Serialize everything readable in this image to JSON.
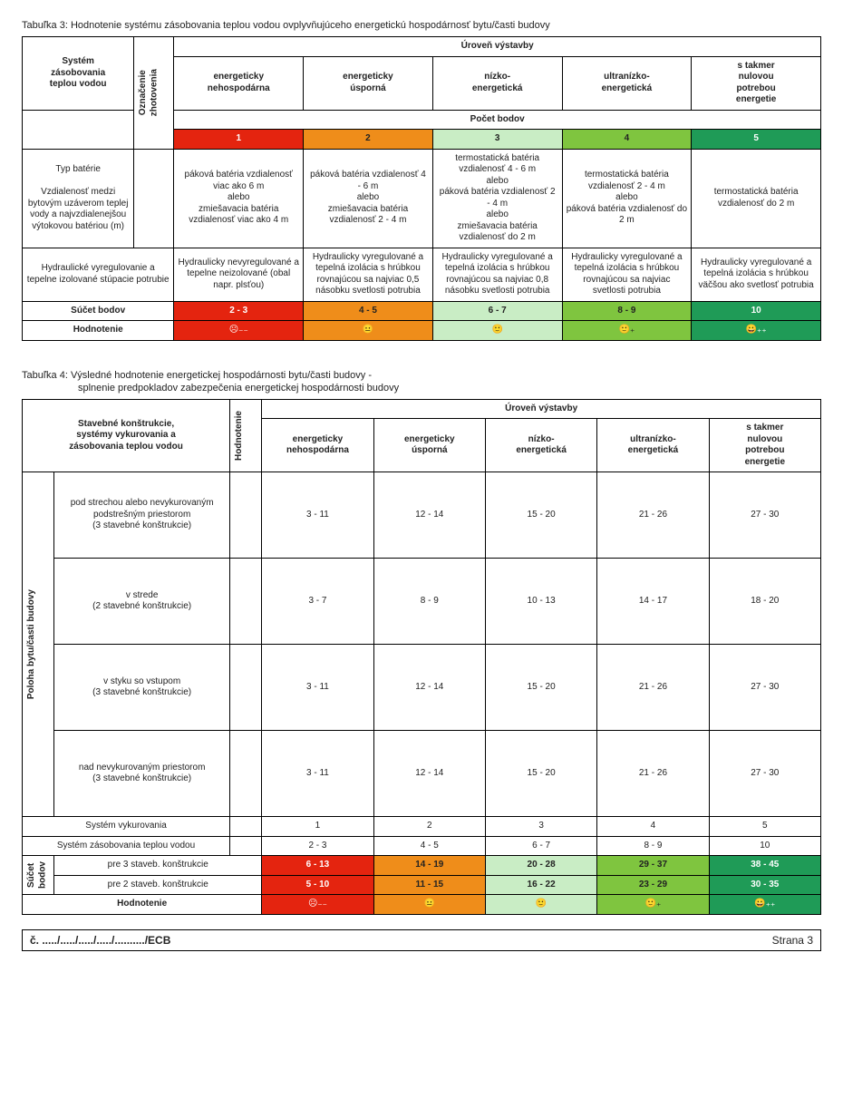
{
  "colors": {
    "c1": "#e4240f",
    "c2": "#ef8d1a",
    "c3": "#c9edc5",
    "c4": "#7fc53f",
    "c5": "#1f9b57",
    "white": "#ffffff",
    "text_on_dark": "#ffffff",
    "text": "#222222"
  },
  "faces": {
    "c1": "☹︎₋₋",
    "c2": "😐",
    "c3": "🙂",
    "c4": "🙂₊",
    "c5": "😀₊₊"
  },
  "table3": {
    "caption": "Tabuľka 3: Hodnotenie systému zásobovania teplou vodou ovplyvňujúceho energetickú hospodárnosť bytu/časti budovy",
    "left_header": "Systém\nzásobovania\nteplou vodou",
    "side_header": "Označenie\nzhotovenia",
    "group_header": "Úroveň výstavby",
    "sub_header": "Počet bodov",
    "levels": [
      "energeticky\nnehospodárna",
      "energeticky\núsporná",
      "nízko-\nenergetická",
      "ultranízko-\nenergetická",
      "s takmer\nnulovou\npotrebou\nenergetie"
    ],
    "numbers": [
      "1",
      "2",
      "3",
      "4",
      "5"
    ],
    "row1_label": "Typ batérie\n\nVzdialenosť medzi bytovým uzáverom teplej vody a najvzdialenejšou výtokovou batériou (m)",
    "row1_cells": [
      "páková batéria vzdialenosť viac ako 6 m\nalebo\nzmiešavacia batéria vzdialenosť viac ako 4 m",
      "páková batéria vzdialenosť 4 - 6 m\nalebo\nzmiešavacia batéria vzdialenosť 2 - 4 m",
      "termostatická batéria vzdialenosť 4 - 6 m\nalebo\npáková batéria vzdialenosť 2 - 4 m\nalebo\nzmiešavacia batéria vzdialenosť do 2 m",
      "termostatická batéria vzdialenosť 2 - 4 m\nalebo\npáková batéria vzdialenosť do 2 m",
      "termostatická batéria vzdialenosť do 2 m"
    ],
    "row2_label": "Hydraulické vyregulovanie a tepelne izolované stúpacie potrubie",
    "row2_cells": [
      "Hydraulicky nevyregulované a tepelne neizolované (obal napr. plsťou)",
      "Hydraulicky vyregulované a tepelná izolácia s hrúbkou rovnajúcou sa najviac 0,5 násobku svetlosti potrubia",
      "Hydraulicky vyregulované a tepelná izolácia s hrúbkou rovnajúcou sa najviac 0,8 násobku svetlosti potrubia",
      "Hydraulicky vyregulované a tepelná izolácia s hrúbkou rovnajúcou sa najviac svetlosti potrubia",
      "Hydraulicky vyregulované a tepelná izolácia s hrúbkou väčšou ako svetlosť potrubia"
    ],
    "sum_label": "Súčet bodov",
    "sum_values": [
      "2 - 3",
      "4 - 5",
      "6 - 7",
      "8 - 9",
      "10"
    ],
    "rating_label": "Hodnotenie"
  },
  "table4": {
    "caption1": "Tabuľka 4: Výsledné hodnotenie energetickej hospodárnosti bytu/časti budovy -",
    "caption2": "splnenie predpokladov zabezpečenia energetickej hospodárnosti budovy",
    "left_header": "Stavebné konštrukcie,\nsystémy vykurovania a\nzásobovania teplou vodou",
    "side_header": "Hodnotenie",
    "group_header": "Úroveň výstavby",
    "levels": [
      "energeticky\nnehospodárna",
      "energeticky\núsporná",
      "nízko-\nenergetická",
      "ultranízko-\nenergetická",
      "s takmer\nnulovou\npotrebou\nenergetie"
    ],
    "poloha_label": "Poloha bytu/časti budovy",
    "rows": [
      {
        "label": "pod strechou alebo nevykurovaným podstrešným priestorom\n(3 stavebné konštrukcie)",
        "v": [
          "3 - 11",
          "12 - 14",
          "15 - 20",
          "21 - 26",
          "27 - 30"
        ]
      },
      {
        "label": "v strede\n(2 stavebné konštrukcie)",
        "v": [
          "3 - 7",
          "8 - 9",
          "10 - 13",
          "14 - 17",
          "18 - 20"
        ]
      },
      {
        "label": "v styku so vstupom\n(3 stavebné konštrukcie)",
        "v": [
          "3 - 11",
          "12 - 14",
          "15 - 20",
          "21 - 26",
          "27 - 30"
        ]
      },
      {
        "label": "nad nevykurovaným priestorom\n(3 stavebné konštrukcie)",
        "v": [
          "3 - 11",
          "12 - 14",
          "15 - 20",
          "21 - 26",
          "27 - 30"
        ]
      }
    ],
    "row_heat": {
      "label": "Systém vykurovania",
      "v": [
        "1",
        "2",
        "3",
        "4",
        "5"
      ]
    },
    "row_water": {
      "label": "Systém zásobovania teplou vodou",
      "v": [
        "2 - 3",
        "4 - 5",
        "6 - 7",
        "8 - 9",
        "10"
      ]
    },
    "sum_side": "Súčet\nbodov",
    "sum_rows": [
      {
        "label": "pre 3 staveb. konštrukcie",
        "v": [
          "6 - 13",
          "14 - 19",
          "20 - 28",
          "29 - 37",
          "38 - 45"
        ]
      },
      {
        "label": "pre 2 staveb. konštrukcie",
        "v": [
          "5 - 10",
          "11 - 15",
          "16 - 22",
          "23 - 29",
          "30 - 35"
        ]
      }
    ],
    "rating_label": "Hodnotenie"
  },
  "footer": {
    "left": "č. ...../...../...../...../........../ECB",
    "right": "Strana 3"
  }
}
